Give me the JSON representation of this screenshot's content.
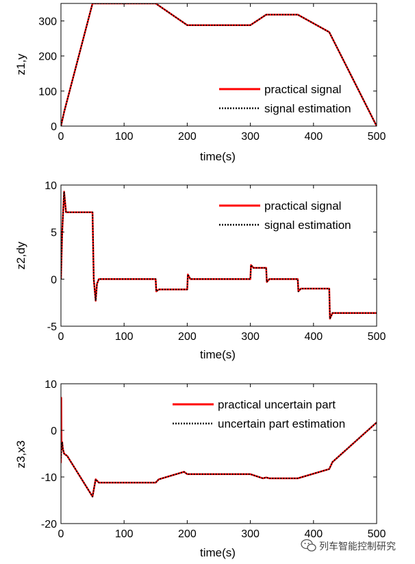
{
  "chart_data": [
    {
      "type": "line",
      "xlabel": "time(s)",
      "ylabel": "z1,y",
      "xlim": [
        0,
        500
      ],
      "ylim": [
        0,
        350
      ],
      "xticks": [
        0,
        100,
        200,
        300,
        400,
        500
      ],
      "yticks": [
        0,
        100,
        200,
        300
      ],
      "grid": false,
      "legend_position": "lower-right",
      "series": [
        {
          "name": "practical signal",
          "color": "#ff0000",
          "style": "solid",
          "x": [
            0,
            5,
            50,
            150,
            200,
            300,
            325,
            375,
            425,
            500
          ],
          "y": [
            0,
            40,
            350,
            350,
            288,
            288,
            318,
            318,
            268,
            0
          ]
        },
        {
          "name": "signal estimation",
          "color": "#000000",
          "style": "dotted",
          "x": [
            0,
            5,
            50,
            150,
            200,
            300,
            325,
            375,
            425,
            500
          ],
          "y": [
            0,
            40,
            350,
            350,
            288,
            288,
            318,
            318,
            268,
            0
          ]
        }
      ]
    },
    {
      "type": "line",
      "xlabel": "time(s)",
      "ylabel": "z2,dy",
      "xlim": [
        0,
        500
      ],
      "ylim": [
        -5,
        10
      ],
      "xticks": [
        0,
        100,
        200,
        300,
        400,
        500
      ],
      "yticks": [
        -5,
        0,
        5,
        10
      ],
      "grid": false,
      "legend_position": "top-right",
      "series": [
        {
          "name": "practical signal",
          "color": "#ff0000",
          "style": "solid",
          "x": [
            0,
            2,
            5,
            8,
            50,
            52,
            55,
            57,
            60,
            150,
            151,
            155,
            200,
            201,
            205,
            300,
            301,
            305,
            325,
            326,
            330,
            375,
            376,
            380,
            425,
            426,
            430,
            500
          ],
          "y": [
            0,
            5,
            9.3,
            7.1,
            7.1,
            0,
            -2.3,
            -0.5,
            0,
            0,
            -1.3,
            -1.1,
            -1.1,
            0.5,
            0,
            0,
            1.5,
            1.2,
            1.2,
            -0.3,
            0,
            0,
            -1.3,
            -1,
            -1,
            -4.2,
            -3.6,
            -3.6
          ]
        },
        {
          "name": "signal estimation",
          "color": "#000000",
          "style": "dotted",
          "x": [
            0,
            2,
            5,
            8,
            50,
            52,
            55,
            57,
            60,
            150,
            151,
            155,
            200,
            201,
            205,
            300,
            301,
            305,
            325,
            326,
            330,
            375,
            376,
            380,
            425,
            426,
            430,
            500
          ],
          "y": [
            0,
            5,
            9.3,
            7.1,
            7.1,
            0,
            -2.3,
            -0.5,
            0,
            0,
            -1.3,
            -1.1,
            -1.1,
            0.5,
            0,
            0,
            1.5,
            1.2,
            1.2,
            -0.3,
            0,
            0,
            -1.3,
            -1,
            -1,
            -4.2,
            -3.6,
            -3.6
          ]
        }
      ]
    },
    {
      "type": "line",
      "xlabel": "time(s)",
      "ylabel": "z3,x3",
      "xlim": [
        0,
        500
      ],
      "ylim": [
        -20,
        10
      ],
      "xticks": [
        0,
        100,
        200,
        300,
        400,
        500
      ],
      "yticks": [
        -20,
        -10,
        0,
        10
      ],
      "grid": false,
      "legend_position": "top-right",
      "series": [
        {
          "name": "practical uncertain part",
          "color": "#ff0000",
          "style": "solid",
          "x": [
            0,
            0.5,
            1,
            2,
            3,
            5,
            10,
            50,
            55,
            60,
            150,
            155,
            195,
            200,
            205,
            300,
            320,
            325,
            330,
            375,
            425,
            430,
            500
          ],
          "y": [
            -7,
            7,
            -4,
            -2.5,
            -4,
            -5,
            -5.5,
            -14.2,
            -10.5,
            -11.2,
            -11.2,
            -10.5,
            -8.9,
            -9.4,
            -9.4,
            -9.4,
            -10.3,
            -10.1,
            -10.3,
            -10.3,
            -8.3,
            -6.8,
            1.7
          ]
        },
        {
          "name": "uncertain part estimation",
          "color": "#000000",
          "style": "dotted",
          "x": [
            0,
            1,
            2,
            3,
            5,
            10,
            50,
            55,
            60,
            150,
            155,
            195,
            200,
            205,
            300,
            320,
            325,
            330,
            375,
            425,
            430,
            500
          ],
          "y": [
            -6,
            -4,
            -2.5,
            -4,
            -5,
            -5.5,
            -14.2,
            -10.5,
            -11.2,
            -11.2,
            -10.5,
            -8.9,
            -9.4,
            -9.4,
            -9.4,
            -10.3,
            -10.1,
            -10.3,
            -10.3,
            -8.3,
            -6.8,
            1.7
          ]
        }
      ]
    }
  ],
  "watermark": {
    "text": "列车智能控制研究",
    "icon": "wechat-icon"
  }
}
